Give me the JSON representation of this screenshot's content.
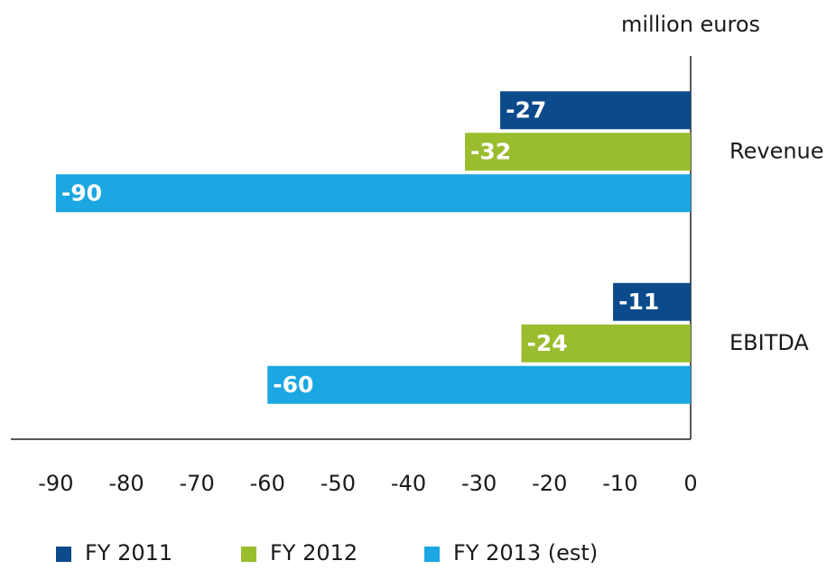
{
  "chart_data": {
    "type": "hbar",
    "unit_label": "million euros",
    "categories": [
      "Revenue",
      "EBITDA"
    ],
    "series": [
      {
        "name": "FY 2011",
        "color": "#0b4a8b",
        "values": [
          -27,
          -11
        ]
      },
      {
        "name": "FY 2012",
        "color": "#9abd2e",
        "values": [
          -32,
          -24
        ]
      },
      {
        "name": "FY 2013 (est)",
        "color": "#1ba7e1",
        "values": [
          -90,
          -60
        ]
      }
    ],
    "xlim": [
      -96,
      0
    ],
    "xticks": [
      -90,
      -80,
      -70,
      -60,
      -50,
      -40,
      -30,
      -20,
      -10,
      0
    ]
  }
}
